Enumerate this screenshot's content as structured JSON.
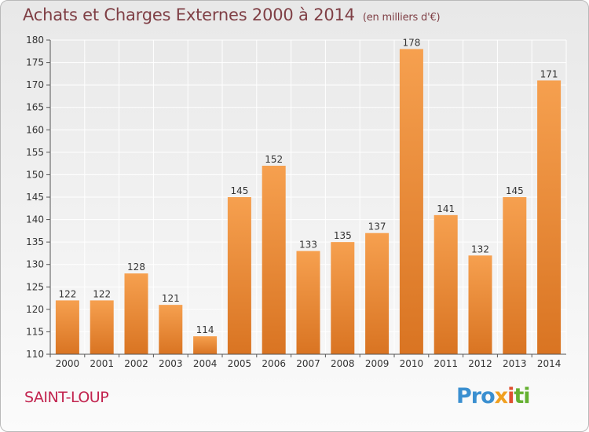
{
  "header": {
    "title": "Achats et Charges Externes 2000 à 2014",
    "unit": "(en milliers d'€)"
  },
  "footer": {
    "commune": "SAINT-LOUP",
    "brand_parts": [
      "Pro",
      "x",
      "i",
      "ti"
    ]
  },
  "colors": {
    "bar_light": "#f6a04f",
    "bar_dark": "#d97422",
    "title": "#7f3f45",
    "commune": "#c2244f",
    "grid": "#ffffff"
  },
  "chart_data": {
    "type": "bar",
    "categories": [
      "2000",
      "2001",
      "2002",
      "2003",
      "2004",
      "2005",
      "2006",
      "2007",
      "2008",
      "2009",
      "2010",
      "2011",
      "2012",
      "2013",
      "2014"
    ],
    "values": [
      122,
      122,
      128,
      121,
      114,
      145,
      152,
      133,
      135,
      137,
      178,
      141,
      132,
      145,
      171
    ],
    "ylim": [
      110,
      180
    ],
    "yticks": [
      110,
      115,
      120,
      125,
      130,
      135,
      140,
      145,
      150,
      155,
      160,
      165,
      170,
      175,
      180
    ],
    "grid": true,
    "legend": false
  }
}
